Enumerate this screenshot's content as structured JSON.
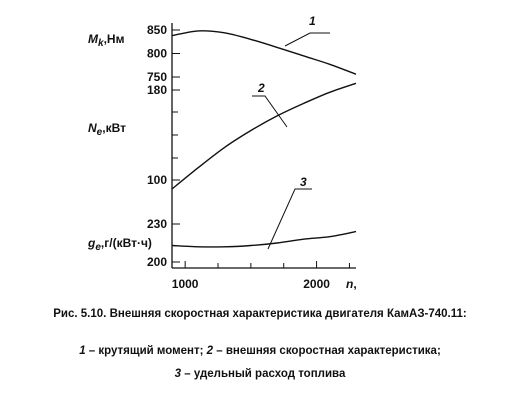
{
  "chart_data": {
    "type": "line",
    "x": [
      900,
      1100,
      1300,
      1500,
      1700,
      1900,
      2100,
      2300
    ],
    "xlabel_var": "n",
    "xlabel_sep": ",",
    "xticks": [
      "1000",
      "2000"
    ],
    "xtick_values": [
      1000,
      2000
    ],
    "xlim": [
      900,
      2300
    ],
    "panels": [
      {
        "id": "torque",
        "label_var": "M",
        "label_sub": "k",
        "label_unit": ",Нм",
        "ylim": [
          750,
          850
        ],
        "ticks": [
          "850",
          "800",
          "750"
        ],
        "tick_values": [
          850,
          800,
          750
        ],
        "series": [
          {
            "name": "1",
            "values": [
              838,
              848,
              844,
              830,
              813,
              795,
              777,
              756
            ]
          }
        ]
      },
      {
        "id": "power",
        "label_var": "N",
        "label_sub": "e",
        "label_unit": ",кВт",
        "ylim": [
          100,
          180
        ],
        "ticks": [
          "180",
          "100"
        ],
        "tick_values": [
          180,
          100
        ],
        "series": [
          {
            "name": "2",
            "values": [
              92,
              111,
              129,
              144,
              157,
              168,
              178,
              186
            ]
          }
        ]
      },
      {
        "id": "consumption",
        "label_var": "g",
        "label_sub": "e",
        "label_unit": ",г/(кВт·ч)",
        "ylim": [
          200,
          230
        ],
        "ticks": [
          "230",
          "200"
        ],
        "tick_values": [
          230,
          200
        ],
        "series": [
          {
            "name": "3",
            "values": [
              213,
              212,
              212,
              213,
              215,
              218,
              220,
              224
            ]
          }
        ]
      }
    ]
  },
  "caption": {
    "title": "Рис. 5.10. Внешняя скоростная характеристика двигателя КамАЗ-740.11:",
    "item1_num": "1",
    "item1_text": " – крутящий момент; ",
    "item2_num": "2",
    "item2_text": " – внешняя скоростная характеристика;",
    "item3_num": "3",
    "item3_text": " – удельный расход топлива"
  }
}
